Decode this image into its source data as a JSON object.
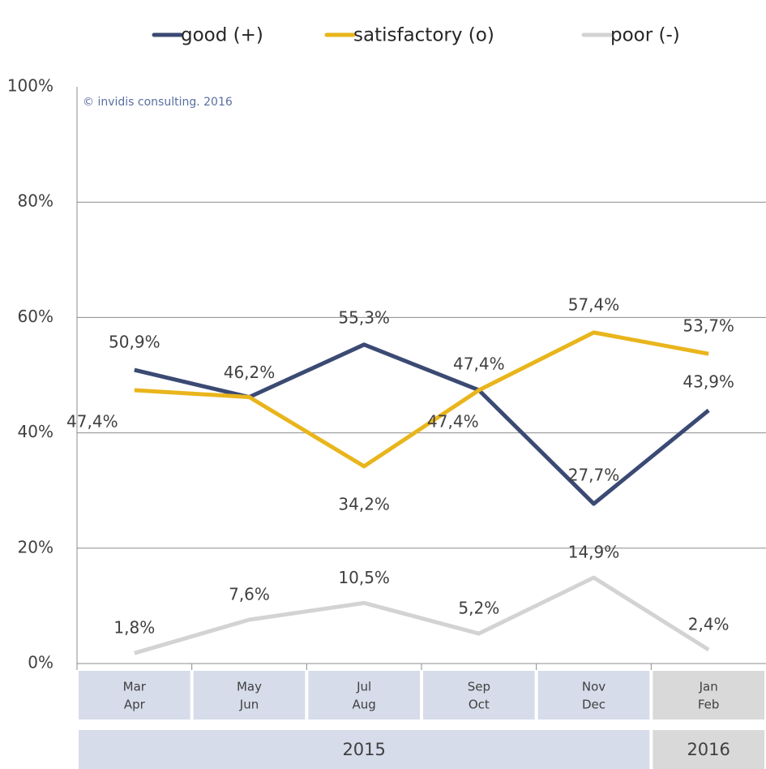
{
  "chart_data": {
    "type": "line",
    "annotation": "© invidis consulting. 2016",
    "categories": [
      [
        "Mar",
        "Apr"
      ],
      [
        "May",
        "Jun"
      ],
      [
        "Jul",
        "Aug"
      ],
      [
        "Sep",
        "Oct"
      ],
      [
        "Nov",
        "Dec"
      ],
      [
        "Jan",
        "Feb"
      ]
    ],
    "groups": [
      "2015",
      "2016"
    ],
    "series": [
      {
        "name": "good (+)",
        "color": "#3b4a73",
        "values": [
          50.9,
          46.2,
          55.3,
          47.4,
          27.7,
          43.9
        ],
        "value_labels": [
          "50,9%",
          "46,2%",
          "55,3%",
          "47,4%",
          "27,7%",
          "43,9%"
        ]
      },
      {
        "name": "satisfactory (o)",
        "color": "#e9b51c",
        "values": [
          47.4,
          46.2,
          34.2,
          47.4,
          57.4,
          53.7
        ],
        "value_labels": [
          "47,4%",
          "46,2%",
          "34,2%",
          "47,4%",
          "57,4%",
          "53,7%"
        ]
      },
      {
        "name": "poor (-)",
        "color": "#d3d3d3",
        "values": [
          1.8,
          7.6,
          10.5,
          5.2,
          14.9,
          2.4
        ],
        "value_labels": [
          "1,8%",
          "7,6%",
          "10,5%",
          "5,2%",
          "14,9%",
          "2,4%"
        ]
      }
    ],
    "ylim": [
      0,
      100
    ],
    "yticks": [
      {
        "value": 0,
        "label": "0%"
      },
      {
        "value": 20,
        "label": "20%"
      },
      {
        "value": 40,
        "label": "40%"
      },
      {
        "value": 60,
        "label": "60%"
      },
      {
        "value": 80,
        "label": "80%"
      },
      {
        "value": 100,
        "label": "100%"
      }
    ],
    "grid": true,
    "legend": "top"
  }
}
